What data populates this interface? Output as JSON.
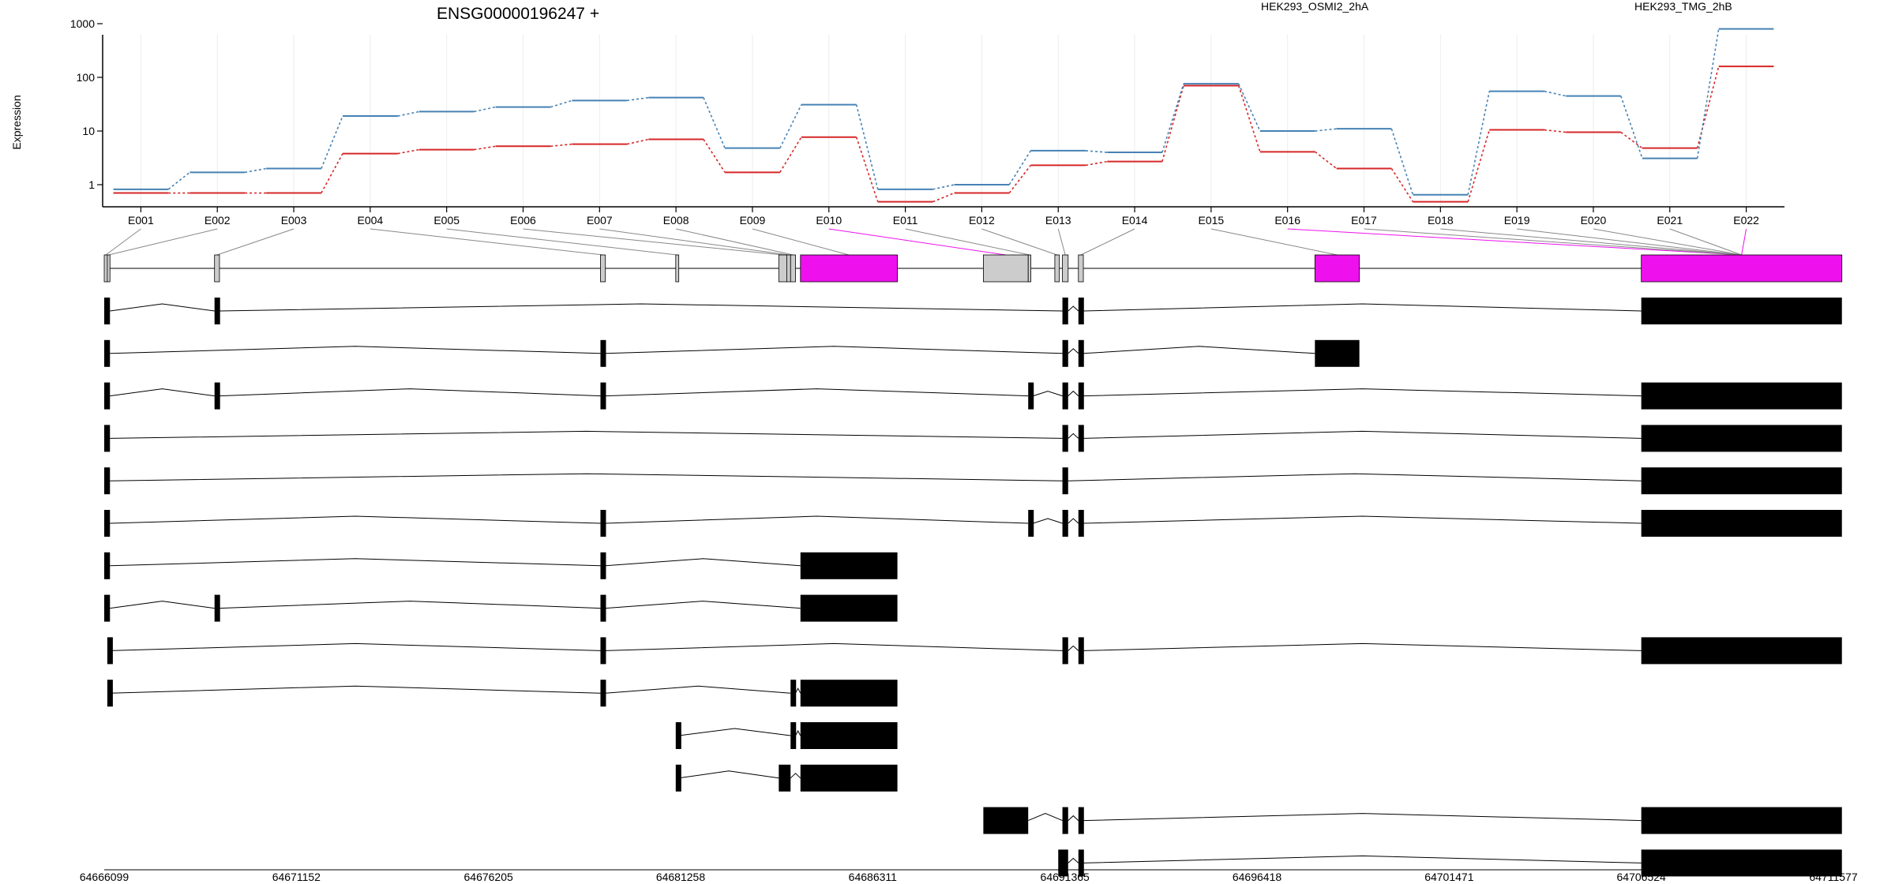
{
  "chart_data": {
    "type": "line",
    "title": "ENSG00000196247 +",
    "ylabel": "Expression",
    "xlabel": "",
    "y_scale": "log10",
    "ylim": [
      0.5,
      1000
    ],
    "y_ticks": [
      1,
      10,
      100,
      1000
    ],
    "y_tick_labels": [
      "1",
      "10",
      "100",
      "1000"
    ],
    "grid": "vertical lines at exon centers",
    "legend_position": "top-right",
    "categories": [
      "E001",
      "E002",
      "E003",
      "E004",
      "E005",
      "E006",
      "E007",
      "E008",
      "E009",
      "E010",
      "E011",
      "E012",
      "E013",
      "E014",
      "E015",
      "E016",
      "E017",
      "E018",
      "E019",
      "E020",
      "E021",
      "E022"
    ],
    "series": [
      {
        "name": "HEK293_OSMI2_2hA",
        "color": "#d62728",
        "values": [
          0.7,
          0.7,
          0.7,
          3.8,
          4.5,
          5.2,
          5.7,
          7.0,
          1.7,
          7.7,
          0.48,
          0.7,
          2.3,
          2.7,
          70,
          4.1,
          2.0,
          0.48,
          10.5,
          9.5,
          4.8,
          160
        ]
      },
      {
        "name": "HEK293_TMG_2hB",
        "color": "#4682b4",
        "values": [
          0.82,
          1.7,
          2.0,
          19,
          23,
          28,
          37,
          42,
          4.8,
          31,
          0.82,
          1.0,
          4.3,
          4.0,
          76,
          10,
          11,
          0.65,
          55,
          45,
          3.1,
          800
        ]
      }
    ],
    "exon_highlight_color": "#ee11ee",
    "gene_model_highlighted_exons": [
      "E010",
      "E016",
      "E022"
    ],
    "genomic_axis": {
      "range": [
        64666099,
        64711577
      ],
      "ticks": [
        64666099,
        64671152,
        64676205,
        64681258,
        64686311,
        64691365,
        64696418,
        64701471,
        64706524,
        64711577
      ],
      "tick_labels": [
        "64666099",
        "64671152",
        "64676205",
        "64681258",
        "64686311",
        "64691365",
        "64696418",
        "64701471",
        "64706524",
        "64711577"
      ]
    },
    "exon_segments": [
      [
        64666099,
        64666180
      ],
      [
        64666180,
        64666250
      ],
      [
        64669000,
        64669130
      ],
      [
        64679150,
        64679280
      ],
      [
        64681130,
        64681210
      ],
      [
        64683840,
        64684050
      ],
      [
        64684050,
        64684150
      ],
      [
        64684150,
        64684280
      ],
      [
        64684410,
        64686960
      ],
      [
        64689220,
        64690400
      ],
      [
        64690400,
        64690470
      ],
      [
        64691100,
        64691220
      ],
      [
        64691300,
        64691450
      ],
      [
        64691720,
        64691850
      ],
      [
        64697940,
        64699110
      ],
      [
        64706524,
        64711800
      ]
    ],
    "transcripts": [
      [
        [
          64666099,
          64666250
        ],
        [
          64669000,
          64669130
        ],
        [
          64691300,
          64691450
        ],
        [
          64691720,
          64691850
        ],
        [
          64706524,
          64711800
        ]
      ],
      [
        [
          64666099,
          64666250
        ],
        [
          64679150,
          64679280
        ],
        [
          64691300,
          64691450
        ],
        [
          64691720,
          64691850
        ],
        [
          64697940,
          64699110
        ]
      ],
      [
        [
          64666099,
          64666250
        ],
        [
          64669000,
          64669130
        ],
        [
          64679150,
          64679280
        ],
        [
          64690400,
          64690530
        ],
        [
          64691300,
          64691450
        ],
        [
          64691720,
          64691850
        ],
        [
          64706524,
          64711800
        ]
      ],
      [
        [
          64666099,
          64666250
        ],
        [
          64691300,
          64691450
        ],
        [
          64691720,
          64691850
        ],
        [
          64706524,
          64711800
        ]
      ],
      [
        [
          64666099,
          64666250
        ],
        [
          64691300,
          64691450
        ],
        [
          64706524,
          64711800
        ]
      ],
      [
        [
          64666099,
          64666250
        ],
        [
          64679150,
          64679280
        ],
        [
          64690400,
          64690530
        ],
        [
          64691300,
          64691450
        ],
        [
          64691720,
          64691850
        ],
        [
          64706524,
          64711800
        ]
      ],
      [
        [
          64666099,
          64666250
        ],
        [
          64679150,
          64679280
        ],
        [
          64684410,
          64686960
        ]
      ],
      [
        [
          64666099,
          64666250
        ],
        [
          64669000,
          64669130
        ],
        [
          64679150,
          64679280
        ],
        [
          64684410,
          64686960
        ]
      ],
      [
        [
          64666180,
          64666250
        ],
        [
          64679150,
          64679280
        ],
        [
          64691300,
          64691450
        ],
        [
          64691720,
          64691850
        ],
        [
          64706524,
          64711800
        ]
      ],
      [
        [
          64666180,
          64666250
        ],
        [
          64679150,
          64679280
        ],
        [
          64684150,
          64684280
        ],
        [
          64684410,
          64686960
        ]
      ],
      [
        [
          64681130,
          64681210
        ],
        [
          64684150,
          64684280
        ],
        [
          64684410,
          64686960
        ]
      ],
      [
        [
          64681130,
          64681210
        ],
        [
          64683840,
          64684150
        ],
        [
          64684410,
          64686960
        ]
      ],
      [
        [
          64689220,
          64690400
        ],
        [
          64691300,
          64691450
        ],
        [
          64691720,
          64691850
        ],
        [
          64706524,
          64711800
        ]
      ],
      [
        [
          64691190,
          64691450
        ],
        [
          64691720,
          64691850
        ],
        [
          64706524,
          64711800
        ]
      ]
    ]
  }
}
